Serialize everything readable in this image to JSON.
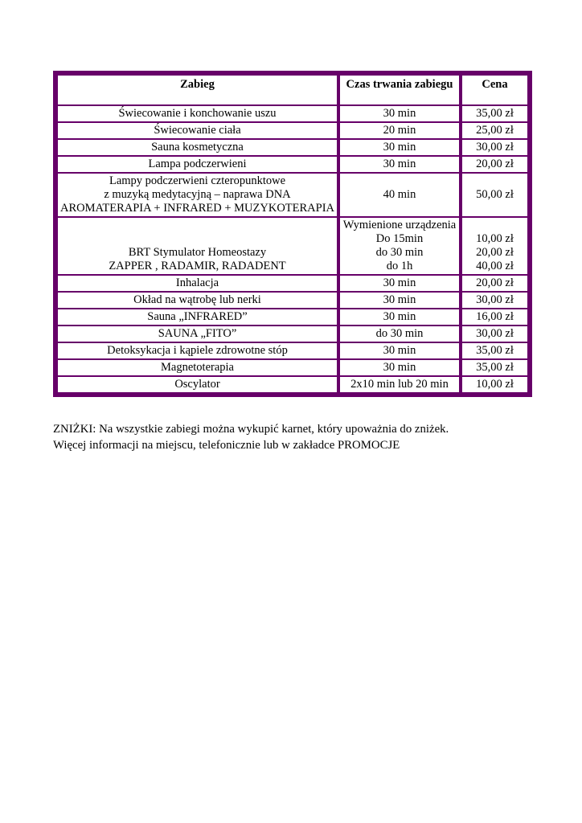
{
  "table": {
    "border_color": "#670069",
    "headers": [
      "Zabieg",
      "Czas trwania zabiegu",
      "Cena"
    ],
    "rows": [
      {
        "zabieg": "Świecowanie i konchowanie uszu",
        "czas": "30 min",
        "cena": "35,00 zł"
      },
      {
        "zabieg": "Świecowanie ciała",
        "czas": "20 min",
        "cena": "25,00 zł"
      },
      {
        "zabieg": "Sauna kosmetyczna",
        "czas": "30 min",
        "cena": "30,00 zł"
      },
      {
        "zabieg": "Lampa podczerwieni",
        "czas": "30 min",
        "cena": "20,00 zł"
      },
      {
        "zabieg": "Lampy podczerwieni czteropunktowe\nz muzyką medytacyjną – naprawa DNA\nAROMATERAPIA + INFRARED + MUZYKOTERAPIA",
        "czas": "40 min",
        "cena": "50,00 zł"
      },
      {
        "zabieg": "BRT Stymulator Homeostazy\nZAPPER , RADAMIR, RADADENT",
        "czas": "Wymienione urządzenia\nDo 15min\ndo 30 min\ndo 1h",
        "cena": "10,00 zł\n20,00 zł\n40,00 zł"
      },
      {
        "zabieg": "Inhalacja",
        "czas": "30 min",
        "cena": "20,00 zł"
      },
      {
        "zabieg": "Okład na wątrobę lub nerki",
        "czas": "30 min",
        "cena": "30,00 zł"
      },
      {
        "zabieg": "Sauna „INFRARED”",
        "czas": "30 min",
        "cena": "16,00 zł"
      },
      {
        "zabieg": "SAUNA „FITO”",
        "czas": "do 30 min",
        "cena": "30,00 zł"
      },
      {
        "zabieg": "Detoksykacja i kąpiele zdrowotne stóp",
        "czas": "30 min",
        "cena": "35,00 zł"
      },
      {
        "zabieg": "Magnetoterapia",
        "czas": "30 min",
        "cena": "35,00 zł"
      },
      {
        "zabieg": "Oscylator",
        "czas": "2x10 min lub 20 min",
        "cena": "10,00 zł"
      }
    ]
  },
  "footer": {
    "line1": "ZNIŻKI: Na wszystkie zabiegi można wykupić karnet, który upoważnia do zniżek.",
    "line2": "Więcej informacji na miejscu, telefonicznie lub w zakładce PROMOCJE"
  }
}
